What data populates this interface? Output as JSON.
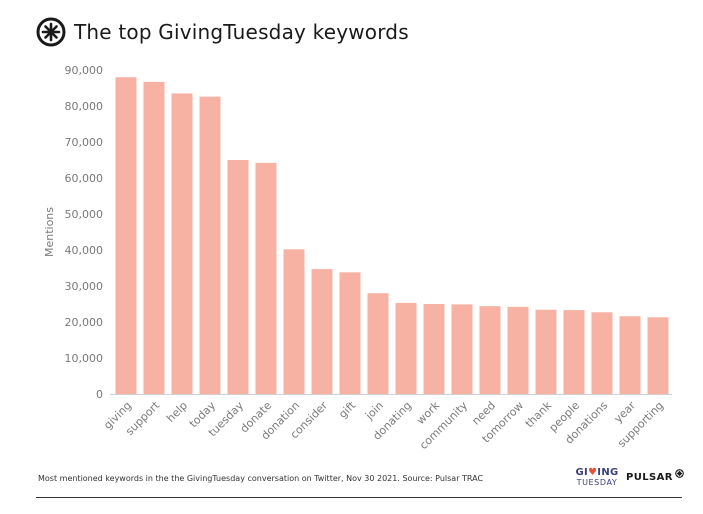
{
  "header": {
    "title": "The top GivingTuesday keywords",
    "logo_icon": "pulsar-asterisk-icon"
  },
  "footer": {
    "source_text": "Most mentioned keywords in the the GivingTuesday conversation on Twitter, Nov 30 2021. Source: Pulsar TRAC",
    "giving_tuesday_logo": {
      "part1": "GI",
      "heart": "♥",
      "part2": "ING",
      "line2": "TUESDAY"
    },
    "pulsar_logo": {
      "text": "PULSAR"
    }
  },
  "chart_data": {
    "type": "bar",
    "title": "The top GivingTuesday keywords",
    "xlabel": "",
    "ylabel": "Mentions",
    "categories": [
      "giving",
      "support",
      "help",
      "today",
      "tuesday",
      "donate",
      "donation",
      "consider",
      "gift",
      "join",
      "donating",
      "work",
      "community",
      "need",
      "tomorrow",
      "thank",
      "people",
      "donations",
      "year",
      "supporting"
    ],
    "values": [
      88000,
      86700,
      83500,
      82600,
      65000,
      64200,
      40200,
      34700,
      33800,
      28000,
      25300,
      25000,
      24900,
      24400,
      24200,
      23400,
      23300,
      22700,
      21600,
      21300
    ],
    "ylim": [
      0,
      90000
    ],
    "yticks": [
      0,
      10000,
      20000,
      30000,
      40000,
      50000,
      60000,
      70000,
      80000,
      90000
    ],
    "ytick_labels": [
      "0",
      "10,000",
      "20,000",
      "30,000",
      "40,000",
      "50,000",
      "60,000",
      "70,000",
      "80,000",
      "90,000"
    ],
    "grid": false,
    "colors": {
      "bar": "#f7b2a3",
      "axis": "#cfcfcf",
      "text": "#7a7a7a"
    }
  }
}
